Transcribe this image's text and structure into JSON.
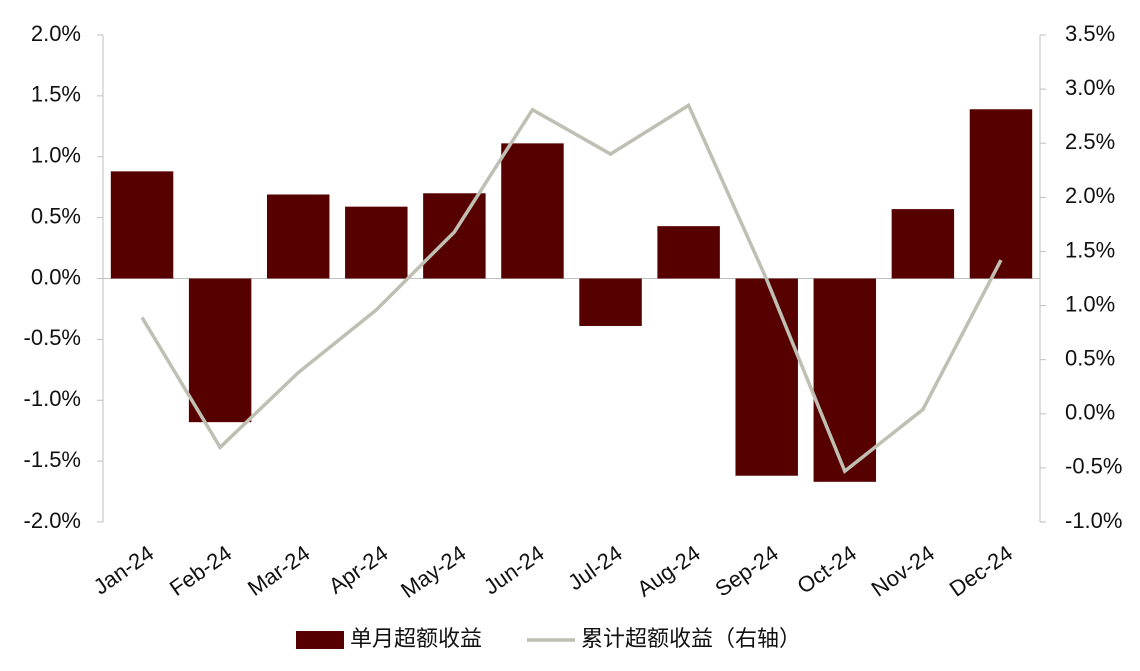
{
  "chart_data": {
    "type": "bar_line",
    "categories": [
      "Jan-24",
      "Feb-24",
      "Mar-24",
      "Apr-24",
      "May-24",
      "Jun-24",
      "Jul-24",
      "Aug-24",
      "Sep-24",
      "Oct-24",
      "Nov-24",
      "Dec-24"
    ],
    "series": [
      {
        "name": "单月超额收益",
        "type": "bar",
        "color": "#560000",
        "values": [
          0.88,
          -1.18,
          0.69,
          0.59,
          0.7,
          1.11,
          -0.39,
          0.43,
          -1.62,
          -1.67,
          0.57,
          1.39
        ]
      },
      {
        "name": "累计超额收益（右轴）",
        "type": "line",
        "axis": "y2",
        "color": "#bfbfb3",
        "values": [
          0.89,
          -0.31,
          0.38,
          0.96,
          1.68,
          2.81,
          2.4,
          2.85,
          1.24,
          -0.53,
          0.04,
          1.42
        ]
      }
    ],
    "ylim": [
      -2.0,
      2.0
    ],
    "yticks": [
      {
        "value": -2.0,
        "label": "-2.0%"
      },
      {
        "value": -1.5,
        "label": "-1.5%"
      },
      {
        "value": -1.0,
        "label": "-1.0%"
      },
      {
        "value": -0.5,
        "label": "-0.5%"
      },
      {
        "value": 0,
        "label": "0.0%"
      },
      {
        "value": 0.5,
        "label": "0.5%"
      },
      {
        "value": 1.0,
        "label": "1.0%"
      },
      {
        "value": 1.5,
        "label": "1.5%"
      },
      {
        "value": 2.0,
        "label": "2.0%"
      }
    ],
    "y2lim": [
      -1.0,
      3.5
    ],
    "y2ticks": [
      {
        "value": -1.0,
        "label": "-1.0%"
      },
      {
        "value": -0.5,
        "label": "-0.5%"
      },
      {
        "value": 0,
        "label": "0.0%"
      },
      {
        "value": 0.5,
        "label": "0.5%"
      },
      {
        "value": 1.0,
        "label": "1.0%"
      },
      {
        "value": 1.5,
        "label": "1.5%"
      },
      {
        "value": 2.0,
        "label": "2.0%"
      },
      {
        "value": 2.5,
        "label": "2.5%"
      },
      {
        "value": 3.0,
        "label": "3.0%"
      },
      {
        "value": 3.5,
        "label": "3.5%"
      }
    ],
    "legend": "bottom"
  }
}
